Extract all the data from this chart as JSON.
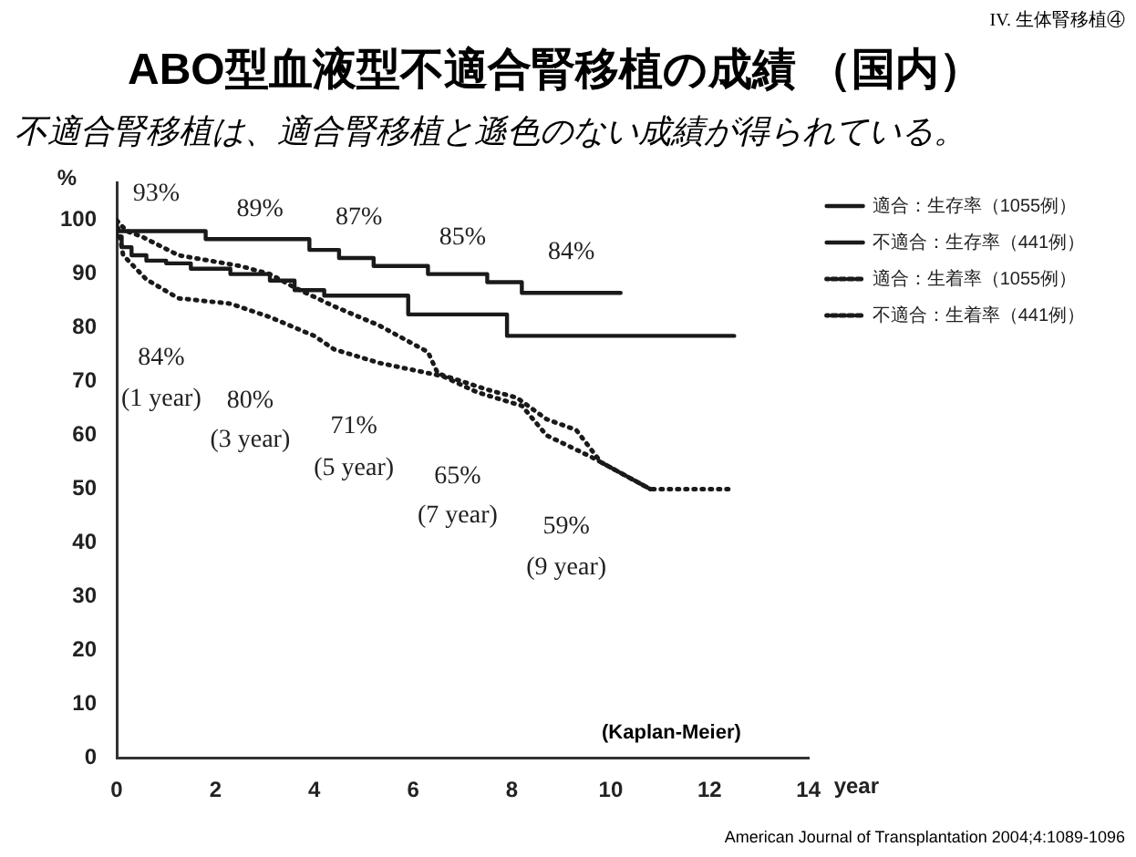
{
  "chart_data": {
    "type": "line",
    "title": "ABO型血液型不適合腎移植の成績 （国内）",
    "subtitle": "不適合腎移植は、適合腎移植と遜色のない成績が得られている。",
    "xlabel": "year",
    "ylabel": "%",
    "xlim": [
      0,
      14
    ],
    "xticks": [
      0,
      2,
      4,
      6,
      8,
      10,
      12,
      14
    ],
    "ylim": [
      0,
      107
    ],
    "yticks": [
      0,
      10,
      20,
      30,
      40,
      50,
      60,
      70,
      80,
      90,
      100
    ],
    "grid": false,
    "legend": "top right",
    "marker": "none",
    "series": [
      {
        "name": "適合：生存率（1055例）",
        "type": "step",
        "line_style": "solid",
        "color": "#1a1a1a",
        "x": [
          0,
          1.8,
          3.9,
          4.5,
          5.2,
          6.3,
          7.5,
          8.2,
          9.2,
          10.2
        ],
        "values": [
          100,
          98,
          96.5,
          94.5,
          93,
          91.5,
          90,
          88.5,
          86.5,
          86.5
        ]
      },
      {
        "name": "不適合：生存率（441例）",
        "type": "step",
        "line_style": "solid",
        "color": "#1a1a1a",
        "x": [
          0,
          0.1,
          0.3,
          0.6,
          1,
          1.5,
          2.3,
          3.1,
          3.6,
          4.2,
          5.9,
          7.9,
          10.1,
          12.5
        ],
        "values": [
          100,
          97,
          95,
          93.5,
          92.5,
          92,
          91,
          90,
          88.8,
          87,
          86,
          82.5,
          78.5,
          78.5
        ]
      },
      {
        "name": "適合：生着率（1055例）",
        "line_style": "dotted",
        "color": "#1a1a1a",
        "x": [
          0,
          0.2,
          0.5,
          1.25,
          2.5,
          3.1,
          3.6,
          4.4,
          5.3,
          6.3,
          6.5,
          7.5,
          8.1,
          8.7,
          9.3,
          9.8,
          10.8,
          12.4
        ],
        "values": [
          100,
          98,
          97,
          93.5,
          91.5,
          90,
          87.5,
          84,
          80.5,
          75.5,
          71.5,
          68.5,
          67,
          63,
          61,
          55,
          50,
          50
        ]
      },
      {
        "name": "不適合：生着率（441例）",
        "line_style": "dotted",
        "color": "#1a1a1a",
        "x": [
          0,
          0.13,
          0.6,
          1.25,
          2.3,
          3.1,
          4,
          4.4,
          5.3,
          6.6,
          7.3,
          8.2,
          8.7,
          9.6,
          10.3,
          10.8
        ],
        "values": [
          100,
          93.5,
          89,
          85.5,
          84.5,
          82,
          78.5,
          76,
          73.5,
          71,
          68,
          65.5,
          60,
          56,
          52.5,
          50
        ]
      }
    ],
    "annotations": [
      "IV. 生体腎移植④",
      "(Kaplan-Meier)",
      "American Journal of Transplantation 2004;4:1089-1096",
      "93%",
      "89%",
      "87%",
      "85%",
      "84%",
      "84%",
      "(1 year)",
      "80%",
      "(3 year)",
      "71%",
      "(5 year)",
      "65%",
      "(7 year)",
      "59%",
      "(9 year)"
    ]
  }
}
